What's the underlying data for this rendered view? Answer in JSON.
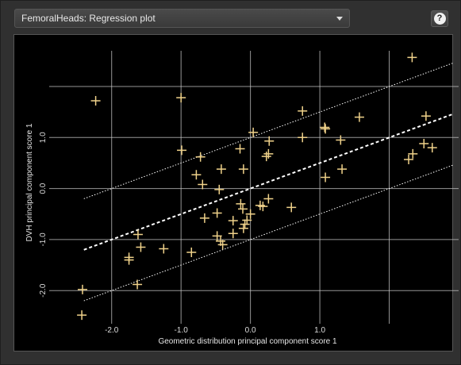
{
  "header": {
    "dropdown_value": "FemoralHeads: Regression plot",
    "help_glyph": "?"
  },
  "colors": {
    "background": "#000000",
    "grid": "#c8c8c8",
    "marker": "#f0d28a",
    "regression_line": "#ffffff"
  },
  "chart_data": {
    "type": "scatter",
    "title": "",
    "xlabel": "Geometric distribution principal component score 1",
    "ylabel": "DVH principal component score 1",
    "xlim": [
      -2.9,
      3.0
    ],
    "ylim": [
      -2.65,
      2.7
    ],
    "x_ticks": [
      -2.0,
      -1.0,
      0.0,
      1.0
    ],
    "y_ticks": [
      -2.0,
      -1.0,
      0.0,
      1.0
    ],
    "x_tick_labels": [
      "-2.0",
      "-1.0",
      "0.0",
      "1.0"
    ],
    "y_tick_labels": [
      "-2.0",
      "-1.0",
      "0.0",
      "1.0"
    ],
    "grid": true,
    "regression": {
      "slope": 0.5,
      "intercept": 0.0,
      "band_offset": 1.0
    },
    "series": [
      {
        "points": [
          [
            -2.23,
            1.72
          ],
          [
            -1.0,
            1.78
          ],
          [
            2.33,
            2.57
          ],
          [
            -0.99,
            0.75
          ],
          [
            -0.78,
            0.27
          ],
          [
            -0.72,
            0.62
          ],
          [
            -0.69,
            0.08
          ],
          [
            -0.42,
            0.38
          ],
          [
            -0.45,
            -0.02
          ],
          [
            -0.15,
            0.78
          ],
          [
            -0.1,
            0.38
          ],
          [
            0.04,
            1.1
          ],
          [
            0.23,
            0.63
          ],
          [
            0.26,
            0.68
          ],
          [
            0.27,
            0.93
          ],
          [
            -0.66,
            -0.58
          ],
          [
            -0.48,
            -0.48
          ],
          [
            -0.48,
            -0.93
          ],
          [
            -0.43,
            -1.03
          ],
          [
            -0.4,
            -1.1
          ],
          [
            -0.25,
            -0.88
          ],
          [
            -0.25,
            -0.63
          ],
          [
            -0.14,
            -0.3
          ],
          [
            -0.11,
            -0.4
          ],
          [
            -0.1,
            -0.78
          ],
          [
            -0.08,
            -0.7
          ],
          [
            -0.05,
            -0.62
          ],
          [
            0.0,
            -0.5
          ],
          [
            0.14,
            -0.33
          ],
          [
            0.18,
            -0.35
          ],
          [
            0.26,
            -0.2
          ],
          [
            0.59,
            -0.37
          ],
          [
            -0.85,
            -1.25
          ],
          [
            -1.25,
            -1.18
          ],
          [
            -1.62,
            -0.9
          ],
          [
            -1.58,
            -1.15
          ],
          [
            -1.75,
            -1.35
          ],
          [
            -1.75,
            -1.4
          ],
          [
            -1.63,
            -1.88
          ],
          [
            -2.42,
            -1.98
          ],
          [
            -2.43,
            -2.48
          ],
          [
            0.75,
            1.52
          ],
          [
            0.75,
            1.0
          ],
          [
            1.07,
            1.2
          ],
          [
            1.08,
            1.17
          ],
          [
            1.08,
            0.22
          ],
          [
            1.3,
            0.95
          ],
          [
            1.32,
            0.38
          ],
          [
            1.57,
            1.4
          ],
          [
            2.28,
            0.57
          ],
          [
            2.34,
            0.68
          ],
          [
            2.5,
            0.88
          ],
          [
            2.53,
            1.42
          ],
          [
            2.62,
            0.8
          ]
        ]
      }
    ]
  }
}
